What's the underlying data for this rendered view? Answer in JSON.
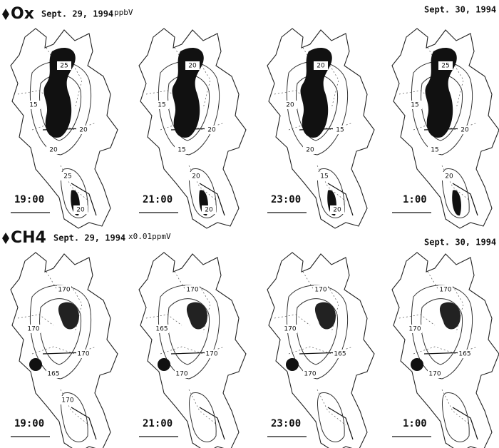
{
  "rows": [
    {
      "label": "Ox",
      "date_start": "Sept. 29, 1994",
      "unit": "ppbV",
      "date_end": "Sept. 30, 1994",
      "maps": [
        {
          "time": "19:00",
          "contours": [
            "25",
            "15",
            "20",
            "20",
            "25",
            "20"
          ]
        },
        {
          "time": "21:00",
          "contours": [
            "20",
            "15",
            "20",
            "15",
            "20",
            "20"
          ]
        },
        {
          "time": "23:00",
          "contours": [
            "20",
            "20",
            "15",
            "20",
            "15",
            "20"
          ]
        },
        {
          "time": "1:00",
          "contours": [
            "25",
            "15",
            "20",
            "15",
            "20"
          ]
        }
      ]
    },
    {
      "label": "CH4",
      "date_start": "Sept. 29, 1994",
      "unit": "x0.01ppmV",
      "date_end": "Sept. 30, 1994",
      "maps": [
        {
          "time": "19:00",
          "contours": [
            "170",
            "170",
            "170",
            "165",
            "170"
          ]
        },
        {
          "time": "21:00",
          "contours": [
            "170",
            "165",
            "170",
            "170"
          ]
        },
        {
          "time": "23:00",
          "contours": [
            "170",
            "170",
            "165",
            "170"
          ]
        },
        {
          "time": "1:00",
          "contours": [
            "170",
            "170",
            "165",
            "170"
          ]
        }
      ]
    }
  ]
}
